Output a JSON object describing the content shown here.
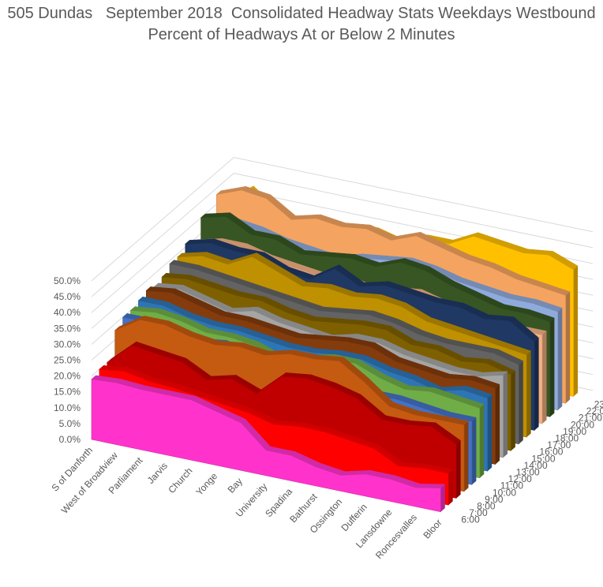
{
  "chart_data": {
    "type": "area",
    "title": "505 Dundas   September 2018  Consolidated Headway Stats Weekdays Westbound",
    "subtitle": "Percent of Headways At or Below 2 Minutes",
    "xlabel": "",
    "ylabel": "",
    "zlabel": "",
    "ylim": [
      0,
      50
    ],
    "y_ticks": [
      "0.0%",
      "5.0%",
      "10.0%",
      "15.0%",
      "20.0%",
      "25.0%",
      "30.0%",
      "35.0%",
      "40.0%",
      "45.0%",
      "50.0%"
    ],
    "grid": true,
    "legend": "none",
    "categories": [
      "S of Danforth",
      "West of Broadview",
      "Parliament",
      "Jarvis",
      "Church",
      "Yonge",
      "Bay",
      "University",
      "Spadina",
      "Bathurst",
      "Ossington",
      "Dufferin",
      "Lansdowne",
      "Roncesvalles",
      "Bloor"
    ],
    "series": [
      {
        "name": "6:00",
        "color": "#ff33cc",
        "values": [
          19,
          19.5,
          19,
          19,
          19,
          17,
          15,
          8,
          8,
          6,
          5,
          7,
          7,
          6,
          7.5
        ]
      },
      {
        "name": "7:00",
        "color": "#ff0000",
        "values": [
          20,
          21,
          19.5,
          19,
          18,
          17,
          16,
          14,
          15,
          15,
          14,
          13,
          9,
          10,
          10
        ]
      },
      {
        "name": "8:00",
        "color": "#c00000",
        "values": [
          20,
          27,
          26,
          25,
          21,
          23,
          20,
          27,
          28,
          27,
          25,
          20,
          20,
          21,
          17
        ]
      },
      {
        "name": "9:00",
        "color": "#c55a11",
        "values": [
          28,
          33,
          33,
          31,
          30,
          31,
          30,
          32,
          32,
          33,
          28,
          22,
          21,
          21,
          21
        ]
      },
      {
        "name": "10:00",
        "color": "#4472c4",
        "values": [
          30,
          30,
          28,
          27,
          28,
          26,
          25,
          25,
          26,
          25,
          22,
          22,
          21,
          20,
          20
        ]
      },
      {
        "name": "11:00",
        "color": "#70ad47",
        "values": [
          30,
          31,
          30,
          28,
          28,
          27,
          24,
          26,
          28,
          28,
          25,
          23,
          24,
          23,
          22
        ]
      },
      {
        "name": "12:00",
        "color": "#2e75b6",
        "values": [
          31,
          31,
          29,
          28,
          28,
          27,
          26,
          26,
          27,
          27,
          25,
          24,
          22,
          24,
          23
        ]
      },
      {
        "name": "13:00",
        "color": "#843c0c",
        "values": [
          32,
          33,
          31,
          29,
          29,
          28,
          27,
          28,
          29,
          29,
          26,
          25,
          24,
          25,
          24
        ]
      },
      {
        "name": "14:00",
        "color": "#a5a5a5",
        "values": [
          31,
          32,
          30,
          28,
          30,
          28,
          27,
          26,
          28,
          28,
          26,
          25,
          24,
          24,
          26
        ]
      },
      {
        "name": "15:00",
        "color": "#7f6000",
        "values": [
          32,
          33,
          32,
          31,
          31,
          29,
          28,
          29,
          30,
          30,
          27,
          27,
          25,
          26,
          24
        ]
      },
      {
        "name": "16:00",
        "color": "#636363",
        "values": [
          34,
          34,
          33,
          32,
          31,
          30,
          29,
          30,
          31,
          30,
          28,
          27,
          27,
          27,
          25
        ]
      },
      {
        "name": "17:00",
        "color": "#bf9000",
        "values": [
          34,
          36,
          35,
          39,
          36,
          33,
          34,
          33,
          34,
          33,
          30,
          29,
          28,
          27,
          26
        ]
      },
      {
        "name": "18:00",
        "color": "#1f3864",
        "values": [
          36,
          38,
          37,
          37,
          34,
          33,
          38,
          34,
          36,
          35,
          34,
          34,
          32,
          33,
          28
        ]
      },
      {
        "name": "19:00",
        "color": "#f4b183",
        "values": [
          34,
          36,
          36,
          34,
          33,
          32,
          33,
          31,
          32,
          33,
          31,
          30,
          28,
          28,
          28
        ]
      },
      {
        "name": "20:00",
        "color": "#375623",
        "values": [
          40,
          42,
          38,
          38,
          35,
          36,
          37,
          36,
          39,
          38,
          35,
          33,
          31,
          31,
          30
        ]
      },
      {
        "name": "21:00",
        "color": "#8faadc",
        "values": [
          36,
          38,
          37,
          35,
          34,
          33,
          35,
          36,
          37,
          36,
          34,
          33,
          32,
          32,
          31
        ]
      },
      {
        "name": "22:00",
        "color": "#f4a460",
        "values": [
          43,
          46,
          45,
          40,
          42,
          41,
          42,
          40,
          43,
          41,
          39,
          38,
          36,
          35,
          34
        ]
      },
      {
        "name": "23:00",
        "color": "#ffc000",
        "values": [
          38,
          44,
          38,
          36,
          37,
          38,
          39,
          37,
          40,
          40,
          44,
          43,
          42,
          43,
          40
        ]
      }
    ]
  }
}
